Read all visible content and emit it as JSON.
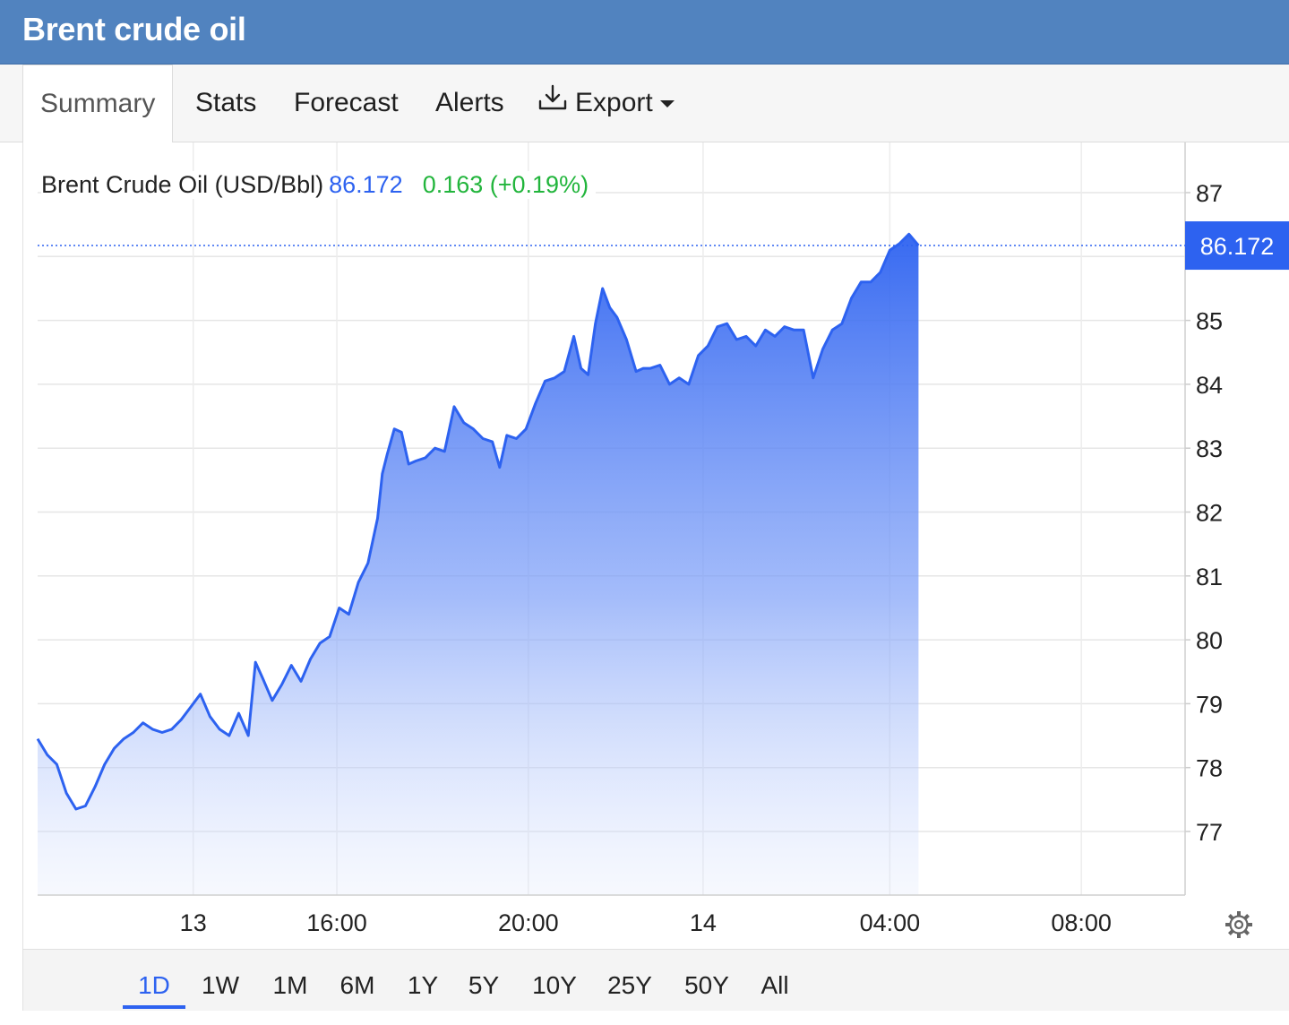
{
  "header": {
    "title": "Brent crude oil"
  },
  "tabs": [
    {
      "label": "Summary",
      "active": true
    },
    {
      "label": "Stats"
    },
    {
      "label": "Forecast"
    },
    {
      "label": "Alerts"
    },
    {
      "label": "Export",
      "icon": "download-icon",
      "dropdown": true
    }
  ],
  "legend": {
    "name": "Brent Crude Oil (USD/Bbl)",
    "price": "86.172",
    "change": "0.163 (+0.19%)"
  },
  "last_price_badge": "86.172",
  "range_buttons": [
    "1D",
    "1W",
    "1M",
    "6M",
    "1Y",
    "5Y",
    "10Y",
    "25Y",
    "50Y",
    "All"
  ],
  "active_range": "1D",
  "settings_icon": "gear-icon",
  "colors": {
    "accent": "#2d62f0",
    "positive": "#22b53c",
    "header": "#5183bf"
  },
  "chart_data": {
    "type": "area",
    "title": "",
    "xlabel": "",
    "ylabel": "",
    "ylim": [
      76,
      88
    ],
    "y_ticks": [
      77,
      78,
      79,
      80,
      81,
      82,
      83,
      84,
      85,
      87
    ],
    "x_ticks": [
      {
        "label": "13",
        "t": 1.25
      },
      {
        "label": "16:00",
        "t": 4.25
      },
      {
        "label": "20:00",
        "t": 8.25
      },
      {
        "label": "14",
        "t": 11.9
      },
      {
        "label": "04:00",
        "t": 15.8
      },
      {
        "label": "08:00",
        "t": 19.8
      }
    ],
    "x_range": [
      -2.0,
      21.5
    ],
    "last_value": 86.172,
    "grid": true,
    "series": [
      {
        "points": [
          [
            -2.0,
            78.45
          ],
          [
            -1.8,
            78.2
          ],
          [
            -1.6,
            78.05
          ],
          [
            -1.4,
            77.6
          ],
          [
            -1.2,
            77.35
          ],
          [
            -1.0,
            77.4
          ],
          [
            -0.8,
            77.7
          ],
          [
            -0.6,
            78.05
          ],
          [
            -0.4,
            78.3
          ],
          [
            -0.2,
            78.45
          ],
          [
            0.0,
            78.55
          ],
          [
            0.2,
            78.7
          ],
          [
            0.4,
            78.6
          ],
          [
            0.6,
            78.55
          ],
          [
            0.8,
            78.6
          ],
          [
            1.0,
            78.75
          ],
          [
            1.2,
            78.95
          ],
          [
            1.4,
            79.15
          ],
          [
            1.6,
            78.8
          ],
          [
            1.8,
            78.6
          ],
          [
            2.0,
            78.5
          ],
          [
            2.2,
            78.85
          ],
          [
            2.4,
            78.5
          ],
          [
            2.55,
            79.65
          ],
          [
            2.7,
            79.4
          ],
          [
            2.9,
            79.05
          ],
          [
            3.1,
            79.3
          ],
          [
            3.3,
            79.6
          ],
          [
            3.5,
            79.35
          ],
          [
            3.7,
            79.7
          ],
          [
            3.9,
            79.95
          ],
          [
            4.1,
            80.05
          ],
          [
            4.3,
            80.5
          ],
          [
            4.5,
            80.4
          ],
          [
            4.7,
            80.9
          ],
          [
            4.9,
            81.2
          ],
          [
            5.1,
            81.9
          ],
          [
            5.2,
            82.6
          ],
          [
            5.3,
            82.9
          ],
          [
            5.45,
            83.3
          ],
          [
            5.6,
            83.25
          ],
          [
            5.75,
            82.75
          ],
          [
            5.9,
            82.8
          ],
          [
            6.1,
            82.85
          ],
          [
            6.3,
            83.0
          ],
          [
            6.5,
            82.95
          ],
          [
            6.7,
            83.65
          ],
          [
            6.9,
            83.4
          ],
          [
            7.1,
            83.3
          ],
          [
            7.3,
            83.15
          ],
          [
            7.5,
            83.1
          ],
          [
            7.65,
            82.7
          ],
          [
            7.8,
            83.2
          ],
          [
            8.0,
            83.15
          ],
          [
            8.2,
            83.3
          ],
          [
            8.4,
            83.7
          ],
          [
            8.6,
            84.05
          ],
          [
            8.8,
            84.1
          ],
          [
            9.0,
            84.2
          ],
          [
            9.2,
            84.75
          ],
          [
            9.35,
            84.25
          ],
          [
            9.5,
            84.15
          ],
          [
            9.65,
            84.95
          ],
          [
            9.8,
            85.5
          ],
          [
            9.95,
            85.2
          ],
          [
            10.1,
            85.05
          ],
          [
            10.3,
            84.7
          ],
          [
            10.5,
            84.2
          ],
          [
            10.65,
            84.25
          ],
          [
            10.8,
            84.25
          ],
          [
            11.0,
            84.3
          ],
          [
            11.2,
            84.0
          ],
          [
            11.4,
            84.1
          ],
          [
            11.6,
            84.0
          ],
          [
            11.8,
            84.45
          ],
          [
            12.0,
            84.6
          ],
          [
            12.2,
            84.9
          ],
          [
            12.4,
            84.95
          ],
          [
            12.6,
            84.7
          ],
          [
            12.8,
            84.75
          ],
          [
            13.0,
            84.6
          ],
          [
            13.2,
            84.85
          ],
          [
            13.4,
            84.75
          ],
          [
            13.6,
            84.9
          ],
          [
            13.8,
            84.85
          ],
          [
            14.0,
            84.85
          ],
          [
            14.2,
            84.1
          ],
          [
            14.4,
            84.55
          ],
          [
            14.6,
            84.85
          ],
          [
            14.8,
            84.95
          ],
          [
            15.0,
            85.35
          ],
          [
            15.2,
            85.6
          ],
          [
            15.4,
            85.6
          ],
          [
            15.6,
            85.75
          ],
          [
            15.8,
            86.1
          ],
          [
            16.0,
            86.2
          ],
          [
            16.2,
            86.35
          ],
          [
            16.4,
            86.172
          ]
        ],
        "x_map_note": "t in chart hours from 12:00; not used"
      }
    ]
  }
}
